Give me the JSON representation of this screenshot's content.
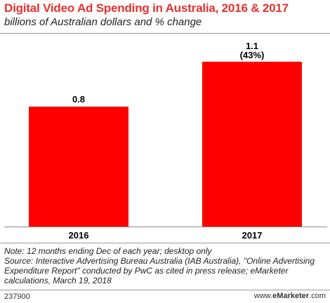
{
  "header": {
    "title": "Digital Video Ad Spending in Australia, 2016 & 2017",
    "subtitle": "billions of Australian dollars and % change"
  },
  "chart_data": {
    "type": "bar",
    "categories": [
      "2016",
      "2017"
    ],
    "values": [
      0.8,
      1.1
    ],
    "value_labels": [
      "0.8",
      "1.1"
    ],
    "change_labels": [
      "",
      "(43%)"
    ],
    "ylim": [
      0,
      1.1
    ],
    "grid": false,
    "bar_color": "#ff0000"
  },
  "footer": {
    "note": "Note: 12 months ending Dec of each year; desktop only",
    "source": "Source: Interactive Advertising Bureau Australia (IAB Australia), \"Online Advertising Expenditure Report\" conducted by PwC as cited in press release; eMarketer calculations, March 19, 2018",
    "chart_id": "237900",
    "brand_prefix": "www.",
    "brand_name": "eMarketer",
    "brand_suffix": ".com"
  }
}
